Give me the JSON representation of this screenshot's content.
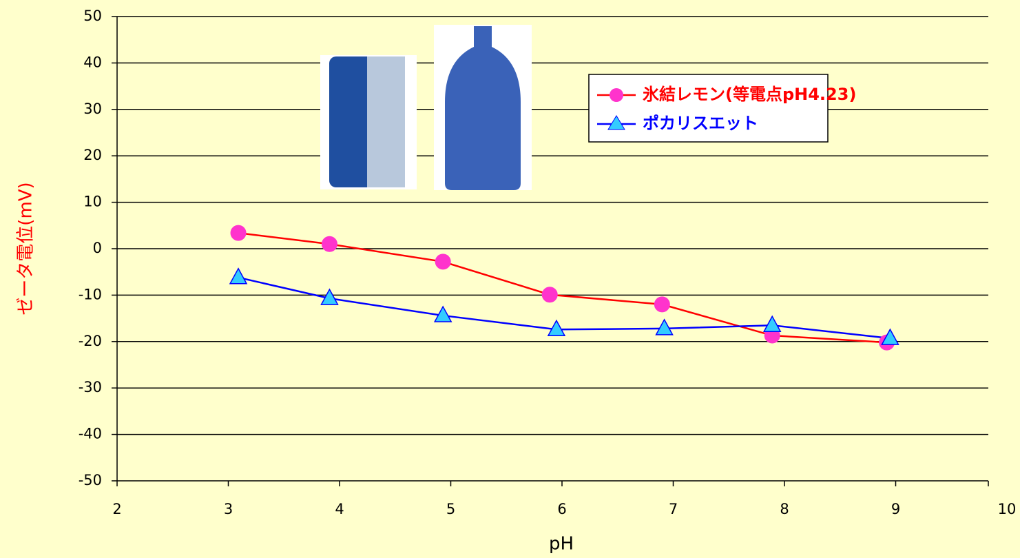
{
  "chart_data": {
    "type": "line",
    "xlabel": "pH",
    "ylabel": "ゼータ電位(mV)",
    "xlim": [
      2,
      10
    ],
    "xticks": [
      2,
      3,
      4,
      5,
      6,
      7,
      8,
      9,
      10
    ],
    "ylim": [
      -50,
      50
    ],
    "yticks": [
      -50,
      -40,
      -30,
      -20,
      -10,
      0,
      10,
      20,
      30,
      40,
      50
    ],
    "grid": true,
    "legend": "upper right",
    "series": [
      {
        "name": "氷結レモン(等電点pH4.23)",
        "color": "#ff0000",
        "marker": "circle",
        "marker_color": "#ff33cc",
        "x": [
          3.09,
          3.91,
          4.93,
          5.89,
          6.9,
          7.89,
          8.92
        ],
        "values": [
          3.4,
          1.0,
          -2.8,
          -9.9,
          -12.0,
          -18.7,
          -20.2
        ]
      },
      {
        "name": "ポカリスエット",
        "color": "#0000ff",
        "marker": "triangle",
        "marker_color": "#33ccff",
        "x": [
          3.09,
          3.91,
          4.93,
          5.95,
          6.92,
          7.89,
          8.95
        ],
        "values": [
          -6.2,
          -10.7,
          -14.4,
          -17.4,
          -17.2,
          -16.5,
          -19.3
        ]
      }
    ]
  }
}
